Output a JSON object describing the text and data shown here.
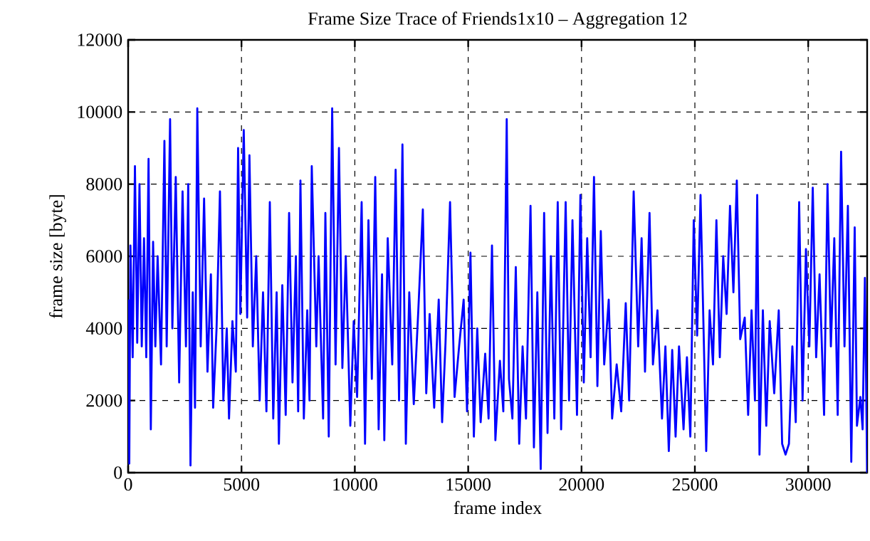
{
  "chart_data": {
    "type": "line",
    "title": "Frame Size Trace of Friends1x10 – Aggregation 12",
    "xlabel": "frame index",
    "ylabel": "frame size [byte]",
    "xlim": [
      0,
      32600
    ],
    "ylim": [
      0,
      12000
    ],
    "xticks": [
      0,
      5000,
      10000,
      15000,
      20000,
      25000,
      30000
    ],
    "yticks": [
      0,
      2000,
      4000,
      6000,
      8000,
      10000,
      12000
    ],
    "grid": true,
    "series": [
      {
        "color": "#0000ff",
        "x": [
          0,
          50,
          100,
          200,
          300,
          400,
          500,
          600,
          700,
          800,
          900,
          1000,
          1100,
          1200,
          1300,
          1450,
          1600,
          1700,
          1850,
          1950,
          2100,
          2250,
          2400,
          2550,
          2650,
          2750,
          2850,
          2950,
          3050,
          3200,
          3350,
          3500,
          3650,
          3750,
          3900,
          4050,
          4200,
          4350,
          4450,
          4600,
          4750,
          4850,
          4950,
          5100,
          5250,
          5350,
          5500,
          5650,
          5800,
          5950,
          6100,
          6250,
          6400,
          6550,
          6650,
          6800,
          6950,
          7100,
          7250,
          7400,
          7500,
          7600,
          7750,
          7900,
          8000,
          8100,
          8300,
          8400,
          8600,
          8700,
          8850,
          9000,
          9150,
          9300,
          9450,
          9600,
          9800,
          9950,
          10100,
          10300,
          10450,
          10600,
          10750,
          10900,
          11050,
          11200,
          11300,
          11450,
          11650,
          11800,
          11950,
          12100,
          12250,
          12400,
          12600,
          12800,
          13000,
          13150,
          13300,
          13500,
          13700,
          13850,
          14000,
          14200,
          14400,
          14600,
          14800,
          14950,
          15100,
          15250,
          15400,
          15550,
          15750,
          15900,
          16050,
          16200,
          16400,
          16550,
          16700,
          16800,
          16950,
          17100,
          17250,
          17400,
          17550,
          17750,
          17900,
          18050,
          18200,
          18350,
          18500,
          18650,
          18800,
          18950,
          19100,
          19300,
          19450,
          19600,
          19800,
          19950,
          20100,
          20250,
          20400,
          20550,
          20700,
          20850,
          21000,
          21200,
          21350,
          21550,
          21750,
          21950,
          22100,
          22300,
          22500,
          22650,
          22800,
          23000,
          23150,
          23350,
          23550,
          23700,
          23850,
          24000,
          24150,
          24300,
          24500,
          24650,
          24800,
          24950,
          25100,
          25250,
          25400,
          25500,
          25650,
          25800,
          25950,
          26100,
          26250,
          26400,
          26550,
          26700,
          26850,
          27000,
          27200,
          27350,
          27500,
          27650,
          27750,
          27850,
          28000,
          28150,
          28300,
          28500,
          28700,
          28850,
          29000,
          29150,
          29300,
          29450,
          29600,
          29750,
          29900,
          30050,
          30200,
          30350,
          30500,
          30700,
          30850,
          31000,
          31150,
          31300,
          31450,
          31600,
          31750,
          31900,
          32050,
          32150,
          32300,
          32400,
          32500,
          32600
        ],
        "values": [
          4800,
          250,
          6300,
          3200,
          8500,
          3600,
          8000,
          3500,
          6500,
          3200,
          8700,
          1200,
          6400,
          3500,
          6000,
          3000,
          9200,
          3500,
          9800,
          4000,
          8200,
          2500,
          7800,
          3500,
          8000,
          200,
          5000,
          1800,
          10100,
          3500,
          7600,
          2800,
          5500,
          1800,
          4000,
          7800,
          2000,
          4000,
          1500,
          4200,
          2800,
          9000,
          4400,
          9500,
          4300,
          8800,
          3500,
          6000,
          2000,
          5000,
          1700,
          7500,
          1500,
          5000,
          800,
          5200,
          1600,
          7200,
          2500,
          6000,
          1700,
          8100,
          1500,
          4500,
          2000,
          8500,
          3500,
          6000,
          1500,
          7200,
          1000,
          10100,
          3000,
          9000,
          2900,
          6000,
          1300,
          4200,
          2100,
          7500,
          800,
          7000,
          2600,
          8200,
          1200,
          5500,
          900,
          6500,
          3000,
          8400,
          2000,
          9100,
          800,
          5000,
          1900,
          4500,
          7300,
          2200,
          4400,
          1800,
          4800,
          1400,
          3600,
          7500,
          2100,
          3500,
          4800,
          1700,
          6100,
          1000,
          4000,
          1400,
          3300,
          1500,
          6300,
          900,
          3100,
          1700,
          9800,
          2600,
          1500,
          5700,
          800,
          3500,
          1500,
          7400,
          700,
          5000,
          100,
          7200,
          1100,
          6000,
          1500,
          7500,
          1200,
          7500,
          2000,
          7000,
          1600,
          7700,
          2500,
          6500,
          3200,
          8200,
          2400,
          6700,
          3000,
          4800,
          1500,
          3000,
          1700,
          4700,
          2000,
          7800,
          3500,
          6500,
          2800,
          7200,
          3000,
          4500,
          1500,
          3500,
          600,
          3400,
          1000,
          3500,
          1200,
          3200,
          1000,
          7000,
          3800,
          7700,
          3500,
          600,
          4500,
          3000,
          7000,
          3200,
          6000,
          4400,
          7400,
          5000,
          8100,
          3700,
          4300,
          1600,
          4500,
          2000,
          7700,
          500,
          4500,
          1300,
          4200,
          2200,
          4500,
          800,
          500,
          800,
          3500,
          1400,
          7500,
          2000,
          6200,
          3500,
          7900,
          3200,
          5500,
          1600,
          8000,
          3500,
          6500,
          1600,
          8900,
          3500,
          7400,
          300,
          6800,
          1300,
          2100,
          1200,
          5400,
          0
        ]
      }
    ]
  }
}
